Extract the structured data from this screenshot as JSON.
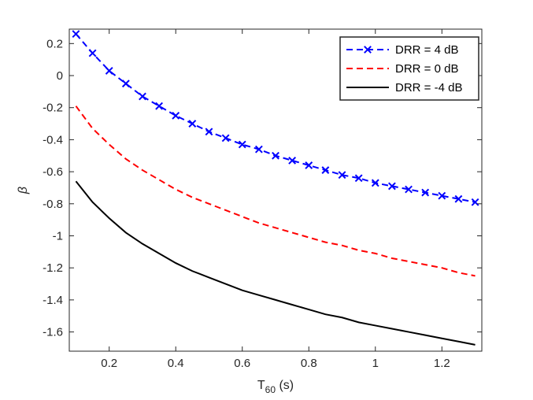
{
  "chart_data": {
    "type": "line",
    "xlabel": "T",
    "xlabel_sub": "60",
    "xlabel_unit": " (s)",
    "ylabel": "β",
    "xlim": [
      0.08,
      1.32
    ],
    "ylim": [
      -1.72,
      0.29
    ],
    "xticks": [
      0.2,
      0.4,
      0.6,
      0.8,
      1,
      1.2
    ],
    "yticks": [
      0.2,
      0,
      -0.2,
      -0.4,
      -0.6,
      -0.8,
      -1,
      -1.2,
      -1.4,
      -1.6
    ],
    "grid": false,
    "legend_position": "top-right",
    "x": [
      0.1,
      0.15,
      0.2,
      0.25,
      0.3,
      0.35,
      0.4,
      0.45,
      0.5,
      0.55,
      0.6,
      0.65,
      0.7,
      0.75,
      0.8,
      0.85,
      0.9,
      0.95,
      1.0,
      1.05,
      1.1,
      1.15,
      1.2,
      1.25,
      1.3
    ],
    "series": [
      {
        "name": "DRR = 4 dB",
        "color": "#0000ff",
        "style": "dashed",
        "marker": "x",
        "values": [
          0.26,
          0.14,
          0.03,
          -0.05,
          -0.13,
          -0.19,
          -0.25,
          -0.3,
          -0.35,
          -0.39,
          -0.43,
          -0.46,
          -0.5,
          -0.53,
          -0.56,
          -0.59,
          -0.62,
          -0.64,
          -0.67,
          -0.69,
          -0.71,
          -0.73,
          -0.75,
          -0.77,
          -0.79
        ]
      },
      {
        "name": "DRR = 0 dB",
        "color": "#ff0000",
        "style": "dashed",
        "marker": "none",
        "values": [
          -0.19,
          -0.33,
          -0.43,
          -0.52,
          -0.59,
          -0.65,
          -0.71,
          -0.76,
          -0.8,
          -0.84,
          -0.88,
          -0.92,
          -0.95,
          -0.98,
          -1.01,
          -1.04,
          -1.06,
          -1.09,
          -1.11,
          -1.14,
          -1.16,
          -1.18,
          -1.2,
          -1.23,
          -1.25
        ]
      },
      {
        "name": "DRR = -4 dB",
        "color": "#000000",
        "style": "solid",
        "marker": "none",
        "values": [
          -0.66,
          -0.79,
          -0.89,
          -0.98,
          -1.05,
          -1.11,
          -1.17,
          -1.22,
          -1.26,
          -1.3,
          -1.34,
          -1.37,
          -1.4,
          -1.43,
          -1.46,
          -1.49,
          -1.51,
          -1.54,
          -1.56,
          -1.58,
          -1.6,
          -1.62,
          -1.64,
          -1.66,
          -1.68
        ]
      }
    ]
  }
}
